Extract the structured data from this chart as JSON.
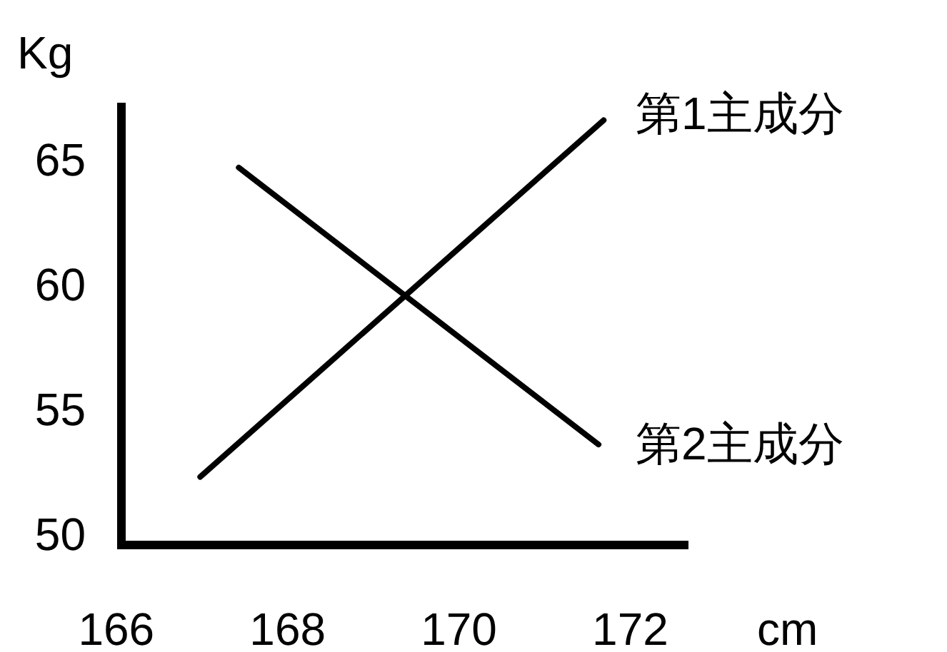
{
  "chart_data": {
    "type": "line",
    "xlabel": "cm",
    "ylabel": "Kg",
    "xlim": [
      166,
      172.67
    ],
    "ylim": [
      49.4,
      67.3
    ],
    "xticks": [
      166,
      168,
      170,
      172
    ],
    "yticks": [
      50,
      55,
      60,
      65
    ],
    "grid": false,
    "legend": false,
    "marker": "none",
    "line_style": "solid",
    "series": [
      {
        "name": "第1主成分",
        "color": "#000000",
        "x": [
          166.97,
          171.68
        ],
        "values": [
          52.3,
          66.6
        ]
      },
      {
        "name": "第2主成分",
        "color": "#000000",
        "x": [
          167.42,
          171.62
        ],
        "values": [
          64.7,
          53.6
        ]
      }
    ]
  }
}
